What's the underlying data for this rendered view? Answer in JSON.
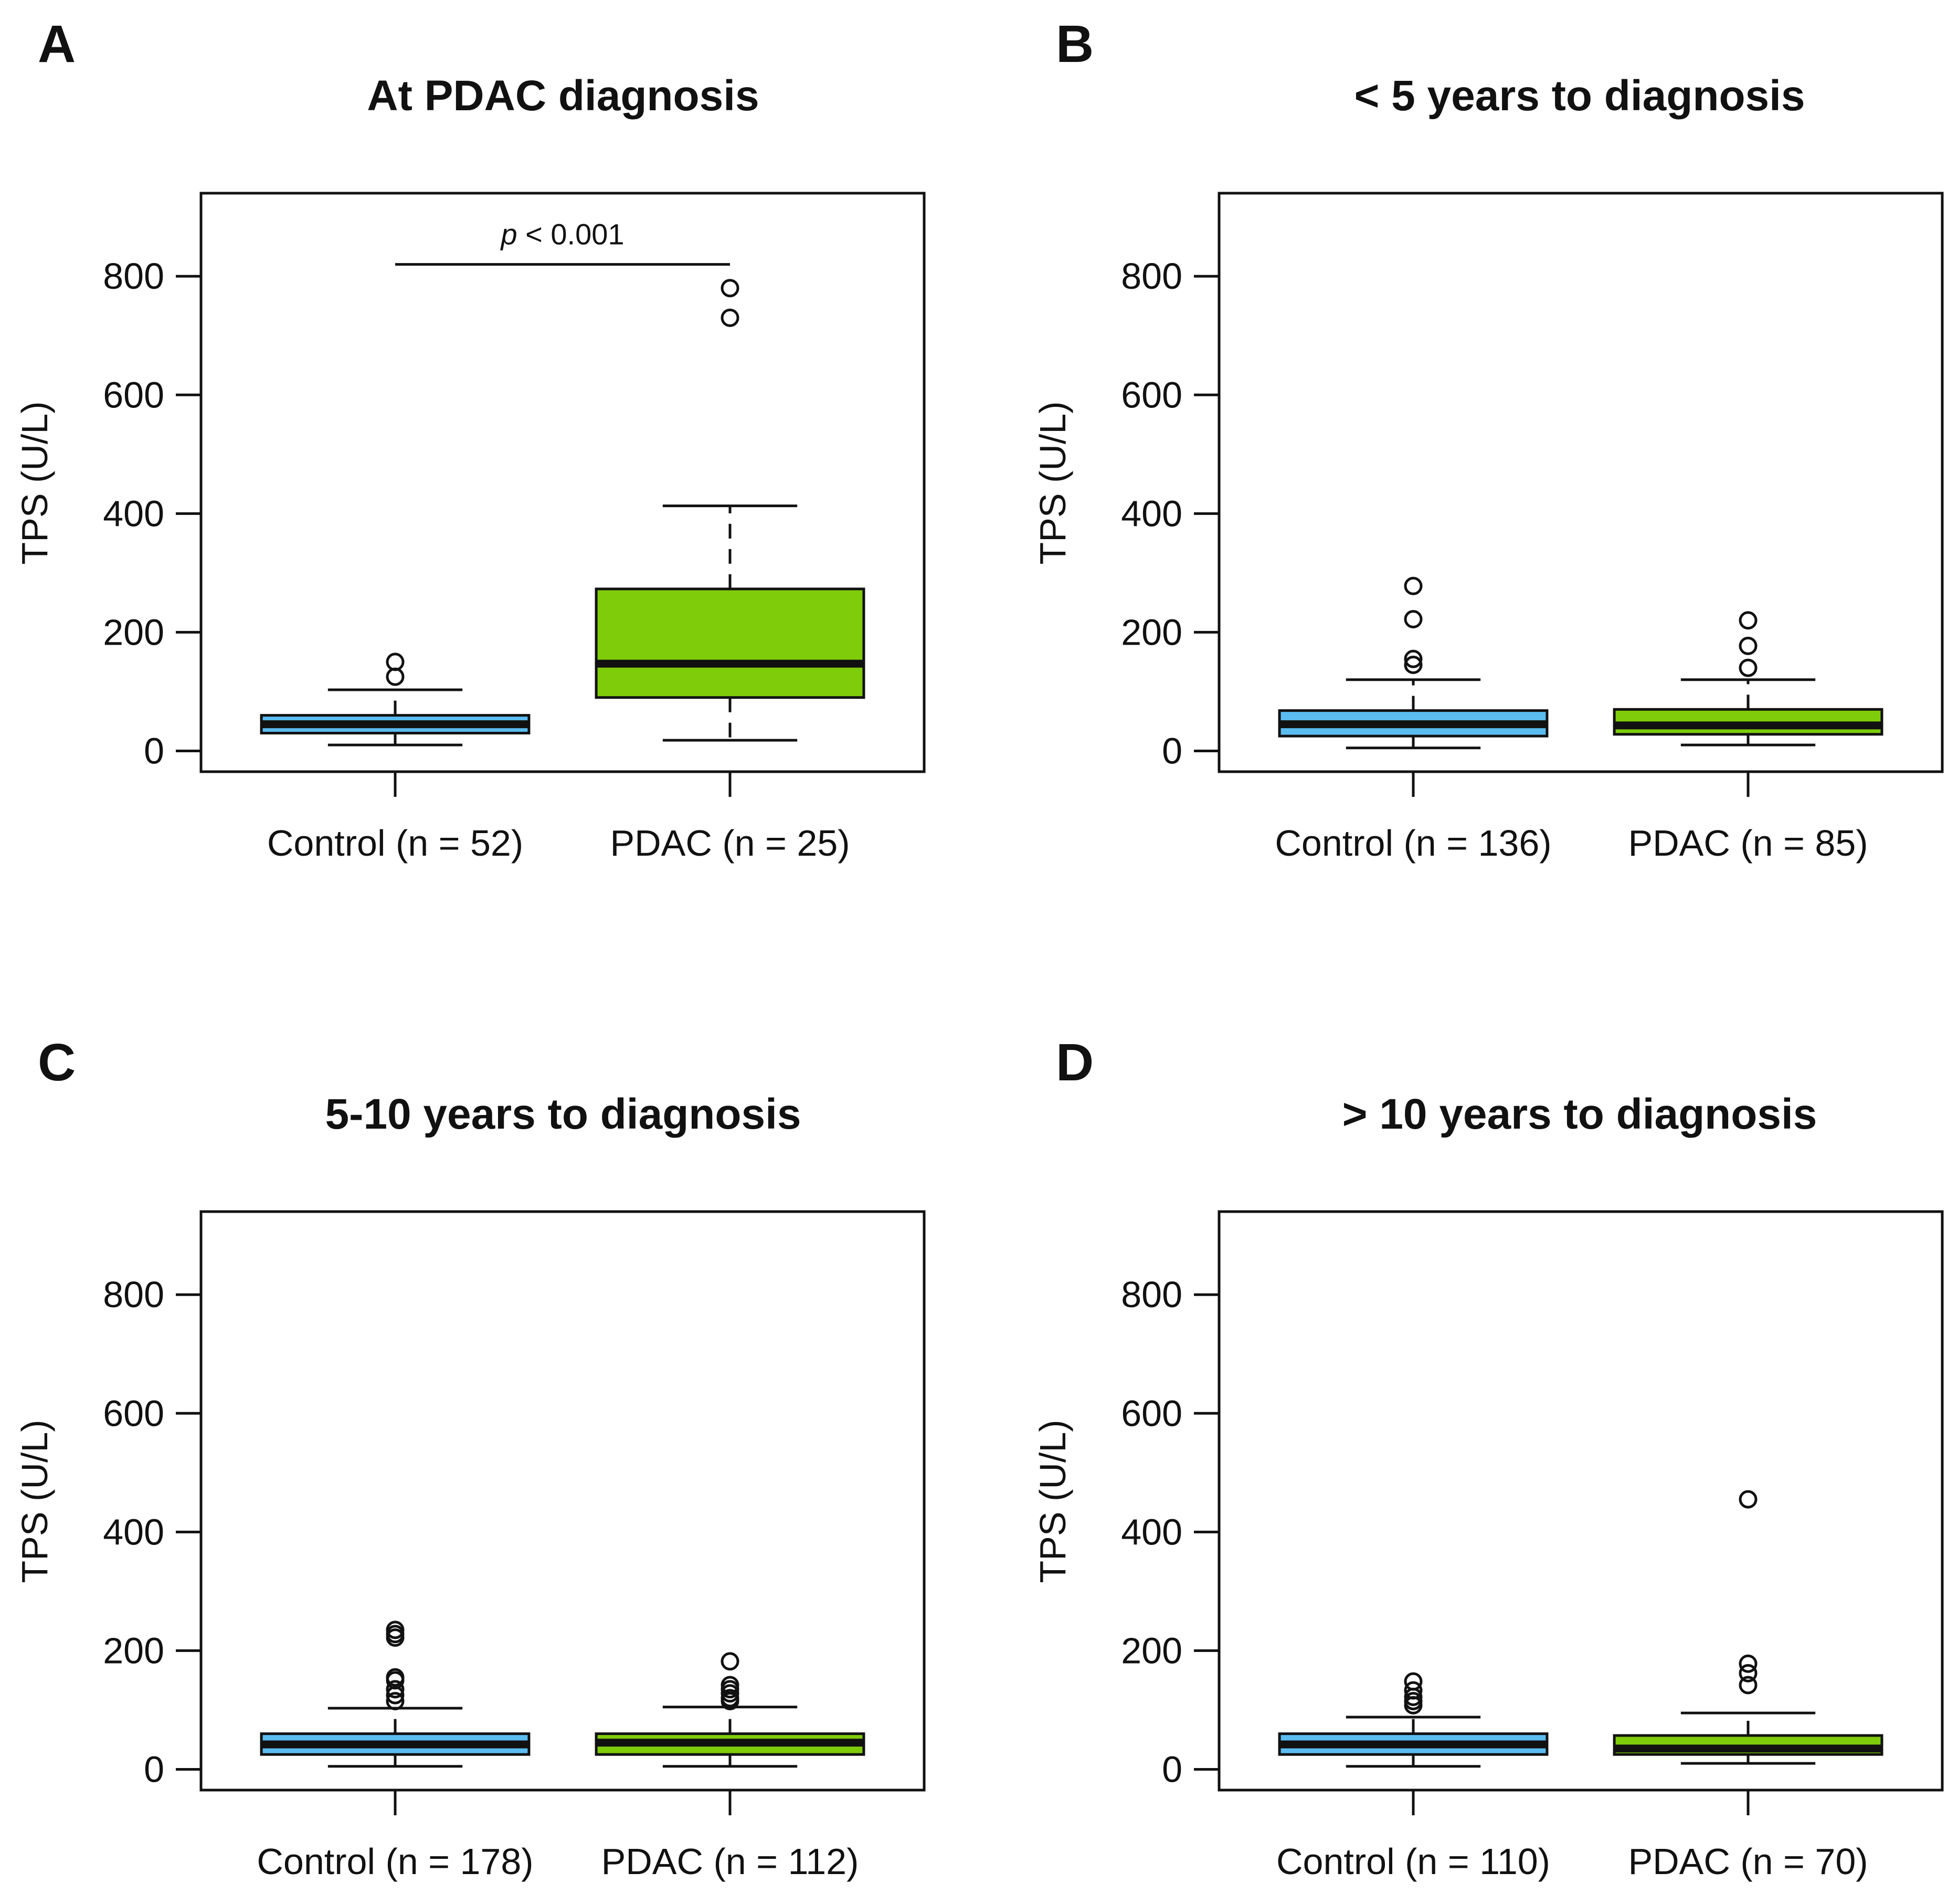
{
  "figure": {
    "colors": {
      "control": "#5bbcf0",
      "pdac": "#7fcc0b",
      "outline": "#111111"
    }
  },
  "chart_data": [
    {
      "panel": "A",
      "type": "box",
      "title": "At PDAC diagnosis",
      "xlabel": "",
      "ylabel": "TPS (U/L)",
      "ylim": [
        -35,
        940
      ],
      "yticks": [
        0,
        200,
        400,
        600,
        800
      ],
      "categories": [
        "Control (n = 52)",
        "PDAC (n = 25)"
      ],
      "series": [
        {
          "name": "Control",
          "whisker_low": 10,
          "q1": 30,
          "median": 45,
          "q3": 60,
          "whisker_high": 103,
          "outliers": [
            125,
            150
          ]
        },
        {
          "name": "PDAC",
          "whisker_low": 18,
          "q1": 90,
          "median": 147,
          "q3": 273,
          "whisker_high": 413,
          "outliers": [
            730,
            780
          ]
        }
      ],
      "annotation": {
        "text_italic": "p",
        "text": " < 0.001",
        "y": 820
      }
    },
    {
      "panel": "B",
      "type": "box",
      "title": "< 5 years to diagnosis",
      "xlabel": "",
      "ylabel": "TPS (U/L)",
      "ylim": [
        -35,
        940
      ],
      "yticks": [
        0,
        200,
        400,
        600,
        800
      ],
      "categories": [
        "Control (n = 136)",
        "PDAC (n = 85)"
      ],
      "series": [
        {
          "name": "Control",
          "whisker_low": 5,
          "q1": 25,
          "median": 45,
          "q3": 68,
          "whisker_high": 120,
          "outliers": [
            145,
            155,
            222,
            278
          ]
        },
        {
          "name": "PDAC",
          "whisker_low": 10,
          "q1": 28,
          "median": 43,
          "q3": 70,
          "whisker_high": 120,
          "outliers": [
            140,
            177,
            220
          ]
        }
      ]
    },
    {
      "panel": "C",
      "type": "box",
      "title": "5-10 years to diagnosis",
      "xlabel": "",
      "ylabel": "TPS (U/L)",
      "ylim": [
        -35,
        940
      ],
      "yticks": [
        0,
        200,
        400,
        600,
        800
      ],
      "categories": [
        "Control (n = 178)",
        "PDAC (n = 112)"
      ],
      "series": [
        {
          "name": "Control",
          "whisker_low": 5,
          "q1": 25,
          "median": 42,
          "q3": 60,
          "whisker_high": 103,
          "outliers": [
            115,
            125,
            135,
            150,
            155,
            222,
            228,
            235
          ]
        },
        {
          "name": "PDAC",
          "whisker_low": 5,
          "q1": 25,
          "median": 45,
          "q3": 60,
          "whisker_high": 105,
          "outliers": [
            115,
            120,
            128,
            135,
            142,
            182
          ]
        }
      ]
    },
    {
      "panel": "D",
      "type": "box",
      "title": "> 10 years to diagnosis",
      "xlabel": "",
      "ylabel": "TPS (U/L)",
      "ylim": [
        -35,
        940
      ],
      "yticks": [
        0,
        200,
        400,
        600,
        800
      ],
      "categories": [
        "Control (n = 110)",
        "PDAC (n = 70)"
      ],
      "series": [
        {
          "name": "Control",
          "whisker_low": 5,
          "q1": 25,
          "median": 42,
          "q3": 60,
          "whisker_high": 88,
          "outliers": [
            108,
            115,
            122,
            133,
            148
          ]
        },
        {
          "name": "PDAC",
          "whisker_low": 10,
          "q1": 25,
          "median": 35,
          "q3": 57,
          "whisker_high": 95,
          "outliers": [
            142,
            162,
            178,
            455
          ]
        }
      ]
    }
  ]
}
